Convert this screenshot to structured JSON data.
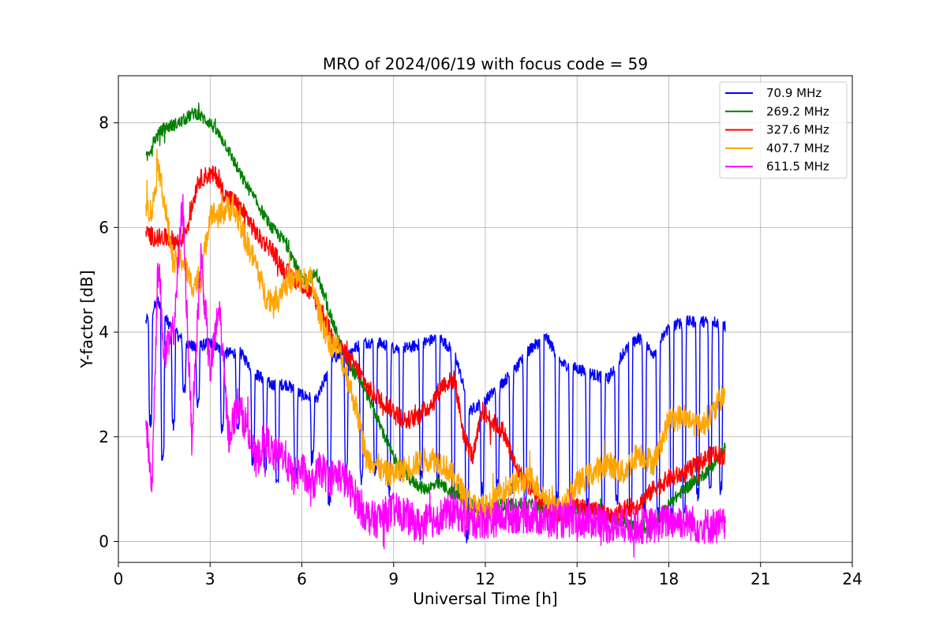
{
  "chart_data": {
    "type": "line",
    "title": "MRO of 2024/06/19 with focus code = 59",
    "xlabel": "Universal Time [h]",
    "ylabel": "Y-factor [dB]",
    "xlim": [
      0,
      24
    ],
    "ylim": [
      -0.4,
      8.9
    ],
    "xticks": [
      0,
      3,
      6,
      9,
      12,
      15,
      18,
      21,
      24
    ],
    "xtick_labels": [
      "0",
      "3",
      "6",
      "9",
      "12",
      "15",
      "18",
      "21",
      "24"
    ],
    "yticks": [
      0,
      2,
      4,
      6,
      8
    ],
    "ytick_labels": [
      "0",
      "2",
      "4",
      "6",
      "8"
    ],
    "grid": true,
    "legend_position": "top-right",
    "series": [
      {
        "name": " 70.9 MHz",
        "color": "#0000ff",
        "x": [
          0.9,
          1.0,
          1.3,
          1.6,
          2.0,
          2.5,
          3.0,
          3.5,
          4.0,
          4.5,
          5.0,
          5.5,
          6.0,
          6.5,
          7.0,
          7.5,
          8.0,
          8.5,
          9.0,
          9.5,
          10.0,
          10.5,
          11.0,
          11.5,
          12.0,
          12.5,
          13.0,
          13.5,
          14.0,
          14.5,
          15.0,
          15.5,
          16.0,
          16.5,
          17.0,
          17.5,
          18.0,
          18.5,
          19.0,
          19.5,
          19.85
        ],
        "y": [
          4.2,
          4.3,
          4.6,
          4.2,
          3.9,
          3.7,
          3.8,
          3.6,
          3.6,
          3.2,
          3.0,
          3.0,
          2.8,
          2.7,
          3.5,
          3.6,
          3.8,
          3.8,
          3.7,
          3.7,
          3.8,
          3.9,
          3.6,
          2.5,
          2.7,
          3.0,
          3.3,
          3.7,
          3.9,
          3.4,
          3.3,
          3.2,
          3.1,
          3.6,
          3.9,
          3.6,
          4.1,
          4.2,
          4.2,
          4.2,
          4.1
        ],
        "dips": [
          1.05,
          1.45,
          1.8,
          2.15,
          2.6,
          3.4,
          3.9,
          4.4,
          4.8,
          5.2,
          5.8,
          6.35,
          6.9,
          7.45,
          7.95,
          8.4,
          8.85,
          9.25,
          9.9,
          10.45,
          10.95,
          11.4,
          11.9,
          12.4,
          12.85,
          13.3,
          13.85,
          14.35,
          14.8,
          15.35,
          15.85,
          16.3,
          16.75,
          17.2,
          17.65,
          18.1,
          18.5,
          18.95,
          19.35,
          19.7
        ],
        "dip_depths": [
          2.3,
          1.7,
          2.2,
          2.9,
          2.7,
          2.2,
          2.1,
          1.6,
          1.4,
          1.1,
          1.3,
          1.6,
          0.8,
          1.4,
          1.2,
          1.4,
          1.0,
          1.3,
          1.3,
          1.2,
          0.9,
          0.1,
          1.0,
          1.1,
          1.0,
          0.8,
          0.9,
          0.8,
          0.7,
          0.7,
          0.6,
          0.8,
          0.6,
          0.6,
          0.5,
          0.5,
          0.6,
          0.9,
          1.0,
          1.0
        ]
      },
      {
        "name": "269.2 MHz",
        "color": "#008000",
        "x": [
          0.9,
          1.2,
          1.5,
          2.0,
          2.5,
          3.0,
          3.5,
          4.0,
          4.5,
          5.0,
          5.5,
          6.0,
          6.5,
          7.0,
          7.5,
          8.0,
          8.5,
          9.0,
          9.5,
          10.0,
          10.5,
          11.0,
          11.5,
          12.0,
          12.5,
          13.0,
          13.5,
          14.0,
          14.5,
          15.0,
          15.5,
          16.0,
          16.5,
          17.0,
          17.5,
          18.0,
          18.5,
          19.0,
          19.5,
          19.85
        ],
        "y": [
          7.3,
          7.7,
          7.9,
          8.0,
          8.2,
          8.0,
          7.6,
          7.0,
          6.5,
          6.0,
          5.7,
          5.0,
          5.1,
          4.2,
          3.4,
          3.0,
          2.3,
          1.6,
          1.2,
          1.0,
          1.1,
          0.9,
          0.7,
          0.6,
          0.7,
          0.7,
          0.7,
          0.6,
          0.6,
          0.6,
          0.6,
          0.5,
          0.4,
          0.2,
          0.3,
          0.7,
          1.0,
          1.2,
          1.5,
          1.8
        ],
        "noise": 0.12
      },
      {
        "name": "327.6 MHz",
        "color": "#ff0000",
        "x": [
          0.9,
          1.2,
          1.6,
          2.0,
          2.3,
          2.6,
          2.9,
          3.2,
          3.5,
          3.8,
          4.2,
          4.6,
          5.0,
          5.4,
          5.8,
          6.2,
          6.6,
          7.0,
          7.4,
          7.8,
          8.2,
          8.6,
          9.0,
          9.4,
          9.8,
          10.2,
          10.6,
          11.0,
          11.3,
          11.6,
          11.9,
          12.2,
          12.6,
          13.0,
          13.5,
          14.0,
          14.5,
          15.0,
          15.5,
          16.0,
          16.5,
          17.0,
          17.5,
          18.0,
          18.5,
          19.0,
          19.5,
          19.85
        ],
        "y": [
          5.9,
          5.8,
          5.8,
          5.7,
          6.1,
          6.9,
          7.0,
          7.0,
          6.6,
          6.5,
          6.2,
          5.8,
          5.6,
          5.2,
          5.0,
          4.8,
          4.5,
          3.9,
          3.6,
          3.3,
          2.9,
          2.7,
          2.5,
          2.3,
          2.4,
          2.6,
          3.0,
          3.1,
          2.0,
          1.6,
          2.5,
          2.3,
          2.1,
          1.4,
          1.0,
          0.6,
          0.5,
          0.7,
          0.6,
          0.5,
          0.6,
          0.7,
          1.0,
          1.2,
          1.3,
          1.5,
          1.7,
          1.6
        ],
        "noise": 0.18
      },
      {
        "name": "407.7 MHz",
        "color": "#ffa500",
        "x": [
          0.9,
          1.1,
          1.3,
          1.5,
          1.8,
          2.1,
          2.4,
          2.7,
          3.0,
          3.3,
          3.6,
          3.9,
          4.2,
          4.5,
          4.8,
          5.1,
          5.4,
          5.7,
          6.0,
          6.3,
          6.6,
          6.9,
          7.2,
          7.5,
          7.8,
          8.1,
          8.4,
          8.7,
          9.0,
          9.4,
          9.8,
          10.2,
          10.6,
          11.0,
          11.4,
          11.8,
          12.2,
          12.6,
          13.0,
          13.5,
          14.0,
          14.5,
          15.0,
          15.5,
          16.0,
          16.5,
          17.0,
          17.5,
          18.0,
          18.5,
          19.0,
          19.5,
          19.85
        ],
        "y": [
          6.4,
          6.3,
          7.2,
          6.5,
          5.3,
          5.4,
          4.9,
          5.0,
          6.3,
          6.2,
          6.4,
          6.2,
          5.7,
          5.3,
          4.7,
          4.6,
          4.9,
          5.0,
          5.0,
          5.0,
          4.3,
          3.8,
          3.7,
          3.1,
          2.5,
          1.6,
          1.5,
          1.3,
          1.3,
          1.4,
          1.5,
          1.6,
          1.5,
          1.2,
          0.8,
          0.6,
          0.7,
          1.0,
          1.1,
          1.2,
          0.8,
          0.6,
          1.1,
          1.3,
          1.5,
          1.3,
          1.7,
          1.5,
          2.3,
          2.4,
          2.2,
          2.5,
          2.9
        ],
        "noise": 0.25
      },
      {
        "name": "611.5 MHz",
        "color": "#ff00ff",
        "x": [
          0.9,
          1.1,
          1.3,
          1.5,
          1.8,
          2.1,
          2.4,
          2.7,
          3.0,
          3.3,
          3.6,
          3.9,
          4.2,
          4.5,
          4.8,
          5.1,
          5.4,
          5.7,
          6.0,
          6.3,
          6.6,
          6.9,
          7.2,
          7.5,
          7.8,
          8.1,
          8.4,
          8.7,
          9.0,
          9.4,
          9.8,
          10.2,
          10.6,
          11.0,
          11.4,
          11.8,
          12.2,
          12.6,
          13.0,
          13.5,
          14.0,
          14.5,
          15.0,
          15.5,
          16.0,
          16.5,
          17.0,
          17.5,
          18.0,
          18.5,
          19.0,
          19.5,
          19.85
        ],
        "y": [
          2.3,
          1.0,
          5.5,
          3.5,
          4.0,
          6.5,
          2.0,
          5.5,
          3.2,
          4.5,
          2.0,
          2.6,
          2.2,
          1.5,
          2.0,
          1.6,
          1.7,
          1.2,
          1.4,
          1.0,
          1.4,
          1.2,
          1.3,
          1.1,
          0.8,
          0.5,
          0.4,
          0.5,
          0.6,
          0.5,
          0.3,
          0.4,
          0.5,
          0.6,
          0.4,
          0.4,
          0.4,
          0.5,
          0.5,
          0.5,
          0.4,
          0.4,
          0.4,
          0.4,
          0.3,
          0.3,
          0.3,
          0.3,
          0.4,
          0.4,
          0.3,
          0.3,
          0.3
        ],
        "noise": 0.35
      }
    ]
  }
}
